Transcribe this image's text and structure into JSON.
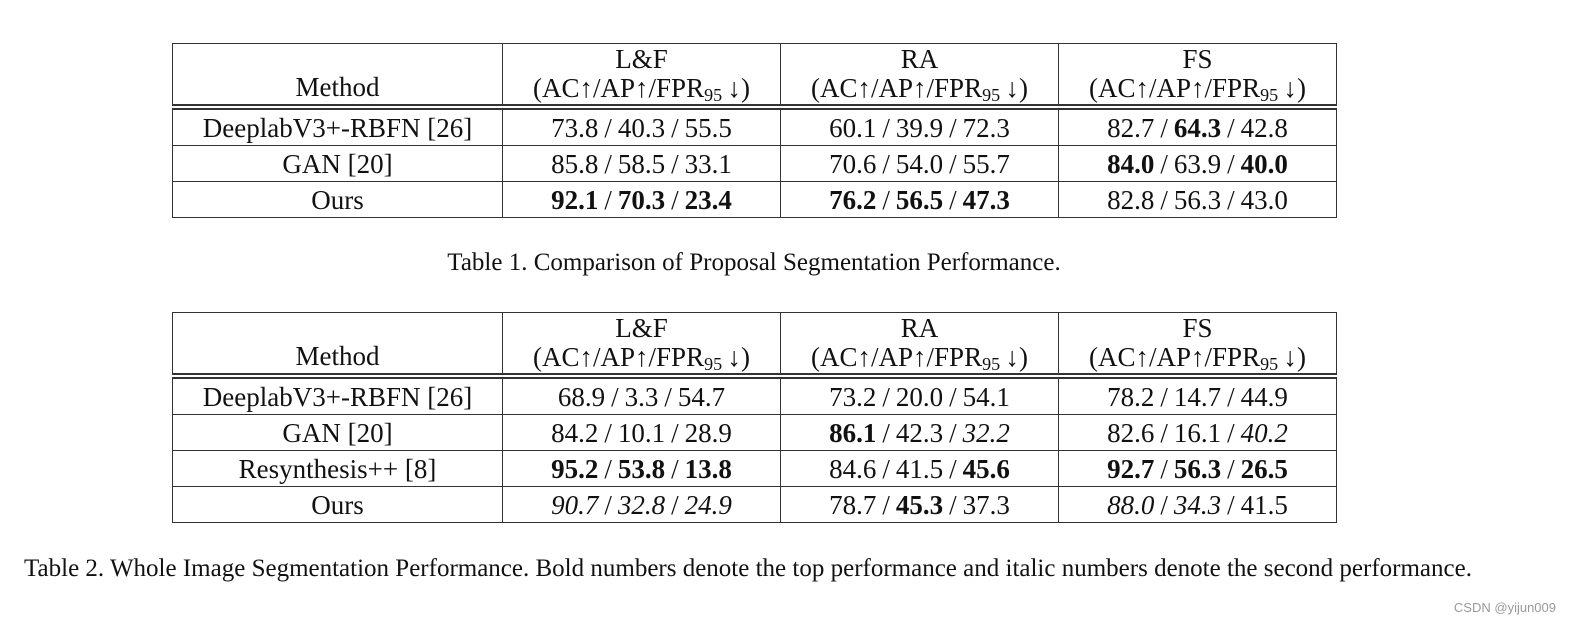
{
  "separator": "/",
  "tables": [
    {
      "method_header": "Method",
      "columns": [
        "L&F",
        "RA",
        "FS"
      ],
      "metric": {
        "text": "(AC↑/AP↑/FPR",
        "sub": "95",
        "tail": "↓)"
      },
      "rows": [
        {
          "method": "DeeplabV3+-RBFN [26]",
          "cells": [
            [
              "73.8",
              "40.3",
              "55.5"
            ],
            [
              "60.1",
              "39.9",
              "72.3"
            ],
            [
              "82.7",
              {
                "text": "64.3",
                "style": "bold"
              },
              "42.8"
            ]
          ]
        },
        {
          "method": "GAN [20]",
          "cells": [
            [
              "85.8",
              "58.5",
              "33.1"
            ],
            [
              "70.6",
              "54.0",
              "55.7"
            ],
            [
              {
                "text": "84.0",
                "style": "bold"
              },
              "63.9",
              {
                "text": "40.0",
                "style": "bold"
              }
            ]
          ]
        },
        {
          "method": "Ours",
          "cells": [
            [
              {
                "text": "92.1",
                "style": "bold"
              },
              {
                "text": "70.3",
                "style": "bold"
              },
              {
                "text": "23.4",
                "style": "bold"
              }
            ],
            [
              {
                "text": "76.2",
                "style": "bold"
              },
              {
                "text": "56.5",
                "style": "bold"
              },
              {
                "text": "47.3",
                "style": "bold"
              }
            ],
            [
              "82.8",
              "56.3",
              "43.0"
            ]
          ]
        }
      ],
      "caption": "Table 1. Comparison of Proposal Segmentation Performance."
    },
    {
      "method_header": "Method",
      "columns": [
        "L&F",
        "RA",
        "FS"
      ],
      "metric": {
        "text": "(AC↑/AP↑/FPR",
        "sub": "95",
        "tail": "↓)"
      },
      "rows": [
        {
          "method": "DeeplabV3+-RBFN [26]",
          "cells": [
            [
              "68.9",
              "3.3",
              "54.7"
            ],
            [
              "73.2",
              "20.0",
              "54.1"
            ],
            [
              "78.2",
              "14.7",
              "44.9"
            ]
          ]
        },
        {
          "method": "GAN [20]",
          "cells": [
            [
              "84.2",
              "10.1",
              "28.9"
            ],
            [
              {
                "text": "86.1",
                "style": "bold"
              },
              "42.3",
              {
                "text": "32.2",
                "style": "italic"
              }
            ],
            [
              "82.6",
              "16.1",
              {
                "text": "40.2",
                "style": "italic"
              }
            ]
          ]
        },
        {
          "method": "Resynthesis++ [8]",
          "cells": [
            [
              {
                "text": "95.2",
                "style": "bold"
              },
              {
                "text": "53.8",
                "style": "bold"
              },
              {
                "text": "13.8",
                "style": "bold"
              }
            ],
            [
              "84.6",
              "41.5",
              {
                "text": "45.6",
                "style": "bold"
              }
            ],
            [
              {
                "text": "92.7",
                "style": "bold"
              },
              {
                "text": "56.3",
                "style": "bold"
              },
              {
                "text": "26.5",
                "style": "bold"
              }
            ]
          ]
        },
        {
          "method": "Ours",
          "cells": [
            [
              {
                "text": "90.7",
                "style": "italic"
              },
              {
                "text": "32.8",
                "style": "italic"
              },
              {
                "text": "24.9",
                "style": "italic"
              }
            ],
            [
              "78.7",
              {
                "text": "45.3",
                "style": "bold"
              },
              "37.3"
            ],
            [
              {
                "text": "88.0",
                "style": "italic"
              },
              {
                "text": "34.3",
                "style": "italic"
              },
              "41.5"
            ]
          ]
        }
      ],
      "caption": "Table 2. Whole Image Segmentation Performance.  Bold numbers denote the top performance and italic numbers denote the second performance."
    }
  ],
  "watermark": "CSDN @yijun009"
}
